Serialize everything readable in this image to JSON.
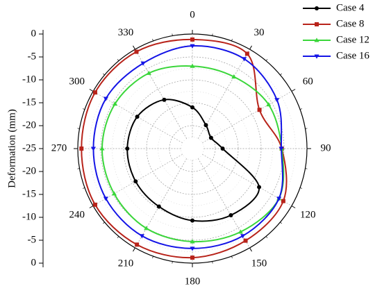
{
  "chart_data": {
    "type": "polar-line",
    "y_label": "Deformation (mm)",
    "theta": [
      0,
      30,
      60,
      90,
      120,
      150,
      180,
      210,
      240,
      270,
      300,
      330
    ],
    "thetaticks": [
      0,
      30,
      60,
      90,
      120,
      150,
      180,
      210,
      240,
      270,
      300,
      330
    ],
    "rlim": [
      -25,
      0
    ],
    "rticks": [
      -25,
      -20,
      -15,
      -10,
      -5,
      0
    ],
    "grid": true,
    "legend": "upper right",
    "series": [
      {
        "name": "Case 4",
        "color": "#000000",
        "marker": "circle",
        "values": [
          -16.0,
          -19.1,
          -20.3,
          -18.4,
          -8.2,
          -8.2,
          -9.3,
          -10.4,
          -10.7,
          -10.8,
          -11.1,
          -12.7
        ]
      },
      {
        "name": "Case 8",
        "color": "#b8231a",
        "marker": "square",
        "values": [
          -1.2,
          -1.1,
          -8.1,
          -5.5,
          -2.1,
          -1.8,
          -1.2,
          -0.8,
          -0.5,
          -0.8,
          -0.5,
          -0.6
        ]
      },
      {
        "name": "Case 12",
        "color": "#3ad63a",
        "marker": "triangle-up",
        "values": [
          -7.0,
          -6.9,
          -5.8,
          -5.5,
          -3.2,
          -4.0,
          -4.7,
          -4.9,
          -5.3,
          -5.3,
          -5.5,
          -6.0
        ]
      },
      {
        "name": "Case 16",
        "color": "#1414e6",
        "marker": "triangle-down",
        "values": [
          -2.6,
          -2.4,
          -3.7,
          -5.6,
          -3.2,
          -3.0,
          -3.2,
          -3.0,
          -3.2,
          -3.4,
          -3.2,
          -3.5
        ]
      }
    ]
  }
}
